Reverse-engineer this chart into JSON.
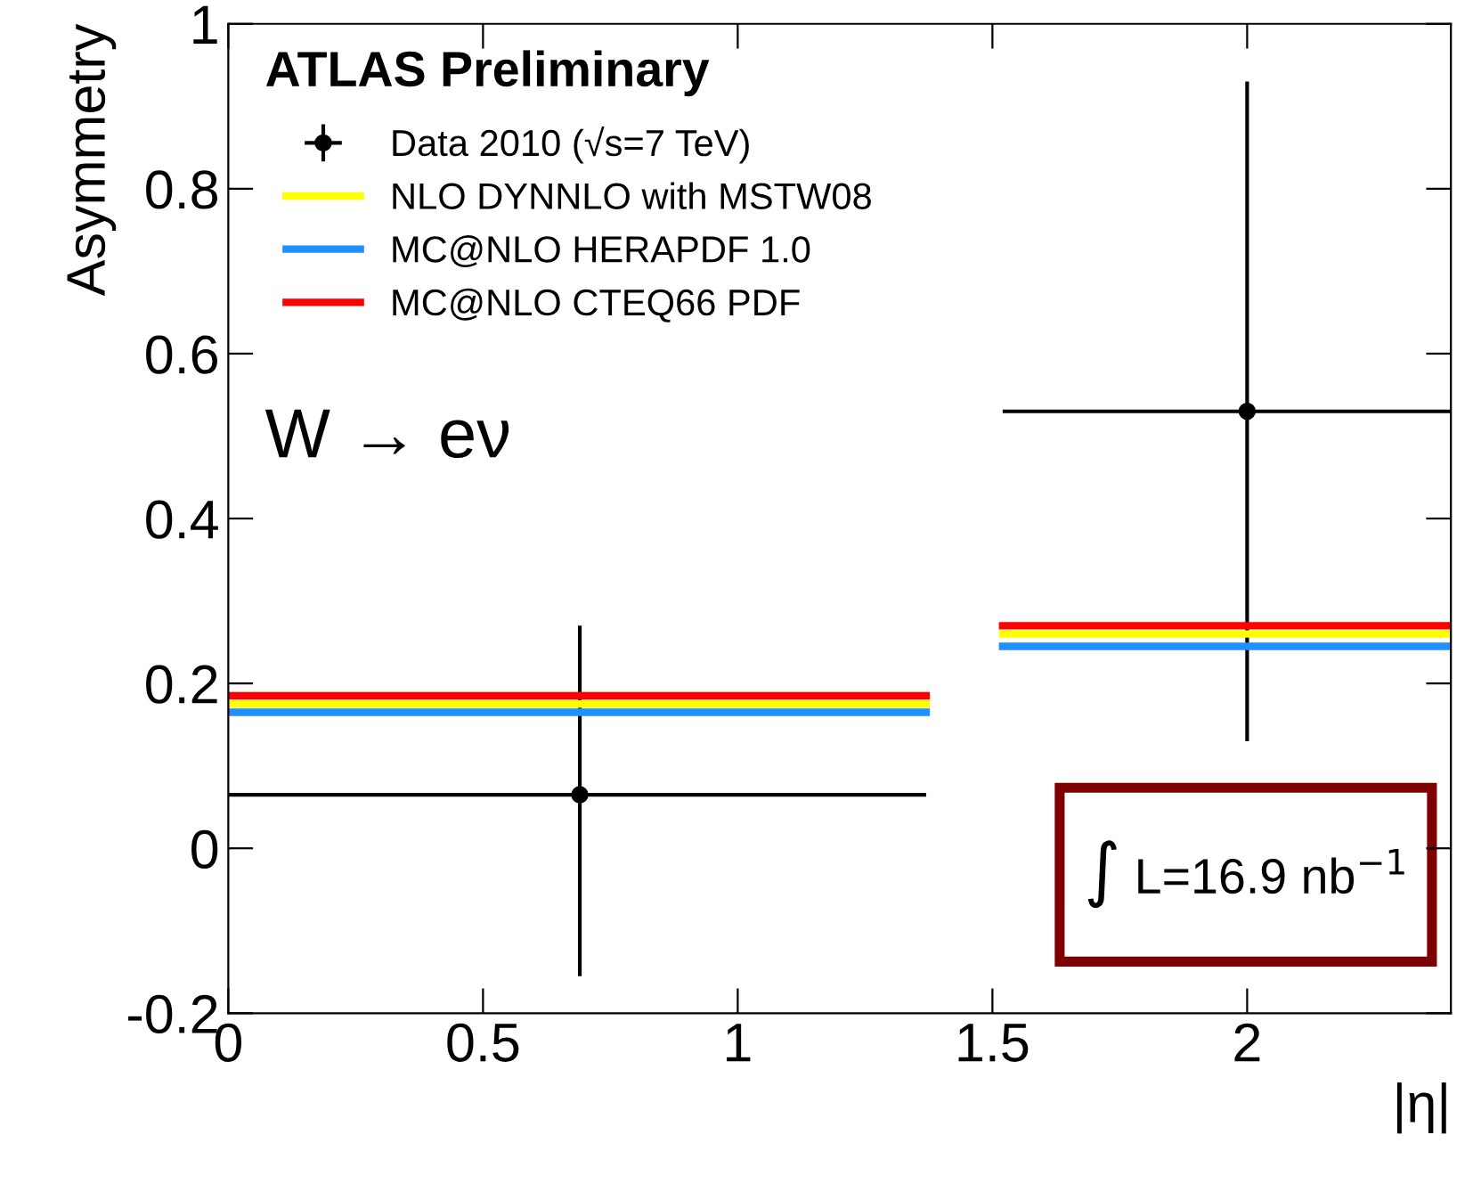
{
  "chart_data": {
    "type": "scatter",
    "xlabel": "|η|",
    "ylabel": "Asymmetry",
    "xlim": [
      0,
      2.4
    ],
    "xticks": [
      0,
      0.5,
      1,
      1.5,
      2
    ],
    "ylim": [
      -0.2,
      1
    ],
    "yticks": [
      -0.2,
      0,
      0.2,
      0.4,
      0.6,
      0.8,
      1
    ],
    "legend": "top left",
    "grid": false,
    "annotations": [
      "ATLAS Preliminary",
      "W → eν",
      "∫ L=16.9 nb$^{−1}$"
    ],
    "series": [
      {
        "name": "Data 2010 (√s=7 TeV)",
        "color": "#000000",
        "marker": "circle",
        "x": [
          0.69,
          2
        ],
        "values": [
          0.065,
          0.53
        ],
        "errors": [
          [
            -0.155,
            0.27
          ],
          [
            0.13,
            0.93
          ]
        ],
        "xerrors": [
          [
            0,
            1.37
          ],
          [
            1.52,
            2.4
          ]
        ]
      },
      {
        "name": "NLO DYNNLO with MSTW08",
        "type": "step",
        "color": "#ffff00",
        "x": [
          0,
          1.37,
          1.52,
          2.4
        ],
        "values": [
          0.175,
          null,
          0.26,
          0.26
        ]
      },
      {
        "name": "MC@NLO HERAPDF 1.0",
        "type": "step",
        "color": "#1e90ff",
        "x": [
          0,
          1.37,
          1.52,
          2.4
        ],
        "values": [
          0.165,
          null,
          0.245,
          0.245
        ]
      },
      {
        "name": "MC@NLO CTEQ66 PDF",
        "type": "step",
        "color": "#ff0000",
        "x": [
          0,
          1.37,
          1.52,
          2.4
        ],
        "values": [
          0.185,
          null,
          0.27,
          0.27
        ]
      }
    ]
  }
}
